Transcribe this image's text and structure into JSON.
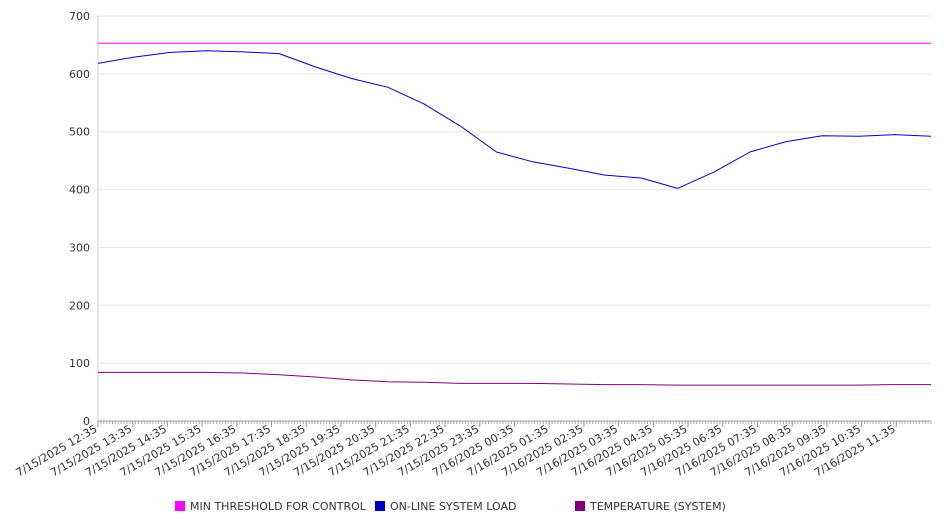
{
  "chart_data": {
    "type": "line",
    "ylim": [
      0,
      700
    ],
    "yticks": [
      0,
      100,
      200,
      300,
      400,
      500,
      600,
      700
    ],
    "xticks": [
      "7/15/2025 12:35",
      "7/15/2025 13:35",
      "7/15/2025 14:35",
      "7/15/2025 15:35",
      "7/15/2025 16:35",
      "7/15/2025 17:35",
      "7/15/2025 18:35",
      "7/15/2025 19:35",
      "7/15/2025 20:35",
      "7/15/2025 21:35",
      "7/15/2025 22:35",
      "7/15/2025 23:35",
      "7/16/2025 00:35",
      "7/16/2025 01:35",
      "7/16/2025 02:35",
      "7/16/2025 03:35",
      "7/16/2025 04:35",
      "7/16/2025 05:35",
      "7/16/2025 06:35",
      "7/16/2025 07:35",
      "7/16/2025 08:35",
      "7/16/2025 09:35",
      "7/16/2025 10:35",
      "7/16/2025 11:35"
    ],
    "x": [
      0,
      1,
      2,
      3,
      4,
      5,
      6,
      7,
      8,
      9,
      10,
      11,
      12,
      13,
      14,
      15,
      16,
      17,
      18,
      19,
      20,
      21,
      22,
      23
    ],
    "grid": true,
    "legend_position": "bottom",
    "series": [
      {
        "name": "MIN THRESHOLD FOR CONTROL",
        "color": "#ff00ff",
        "values": [
          653,
          653,
          653,
          653,
          653,
          653,
          653,
          653,
          653,
          653,
          653,
          653,
          653,
          653,
          653,
          653,
          653,
          653,
          653,
          653,
          653,
          653,
          653,
          653
        ]
      },
      {
        "name": "ON-LINE SYSTEM LOAD",
        "color": "#0000cc",
        "values": [
          618,
          629,
          637,
          640,
          638,
          635,
          612,
          592,
          577,
          548,
          510,
          465,
          448,
          437,
          425,
          420,
          402,
          430,
          465,
          483,
          493,
          492,
          495,
          492
        ]
      },
      {
        "name": "TEMPERATURE (SYSTEM)",
        "color": "#800080",
        "values": [
          84,
          84,
          84,
          84,
          83,
          80,
          76,
          71,
          68,
          67,
          65,
          65,
          65,
          64,
          63,
          63,
          62,
          62,
          62,
          62,
          62,
          62,
          63,
          63
        ]
      }
    ]
  }
}
